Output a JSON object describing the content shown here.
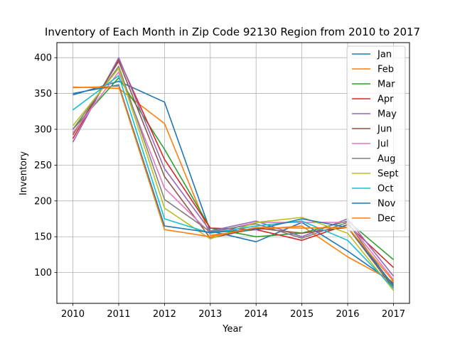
{
  "chart_data": {
    "type": "line",
    "title": "Inventory of Each Month in Zip Code 92130 Region from 2010 to 2017",
    "xlabel": "Year",
    "ylabel": "Inventory",
    "x": [
      2010,
      2011,
      2012,
      2013,
      2014,
      2015,
      2016,
      2017
    ],
    "xlim": [
      2009.65,
      2017.35
    ],
    "ylim": [
      57,
      421
    ],
    "yticks": [
      100,
      150,
      200,
      250,
      300,
      350,
      400
    ],
    "grid": true,
    "legend_position": "top-right",
    "series": [
      {
        "name": "Jan",
        "color": "#1f77b4",
        "values": [
          348,
          367,
          338,
          158,
          143,
          170,
          130,
          85
        ]
      },
      {
        "name": "Feb",
        "color": "#ff7f0e",
        "values": [
          359,
          357,
          308,
          152,
          160,
          165,
          122,
          87
        ]
      },
      {
        "name": "Mar",
        "color": "#2ca02c",
        "values": [
          300,
          372,
          272,
          162,
          150,
          155,
          172,
          118
        ]
      },
      {
        "name": "Apr",
        "color": "#d62728",
        "values": [
          287,
          398,
          258,
          162,
          160,
          145,
          167,
          107
        ]
      },
      {
        "name": "May",
        "color": "#9467bd",
        "values": [
          282,
          400,
          245,
          158,
          172,
          150,
          175,
          95
        ]
      },
      {
        "name": "Jun",
        "color": "#8c564b",
        "values": [
          292,
          395,
          234,
          148,
          162,
          155,
          163,
          78
        ]
      },
      {
        "name": "Jul",
        "color": "#e377c2",
        "values": [
          295,
          380,
          218,
          155,
          170,
          170,
          170,
          90
        ]
      },
      {
        "name": "Aug",
        "color": "#7f7f7f",
        "values": [
          300,
          388,
          202,
          157,
          168,
          148,
          170,
          80
        ]
      },
      {
        "name": "Sept",
        "color": "#bcbd22",
        "values": [
          305,
          385,
          190,
          147,
          170,
          177,
          155,
          75
        ]
      },
      {
        "name": "Oct",
        "color": "#17becf",
        "values": [
          327,
          375,
          175,
          155,
          165,
          172,
          145,
          78
        ]
      },
      {
        "name": "Nov",
        "color": "#1f77b4",
        "values": [
          350,
          362,
          165,
          156,
          160,
          175,
          163,
          82
        ]
      },
      {
        "name": "Dec",
        "color": "#ff7f0e",
        "values": [
          358,
          360,
          160,
          150,
          163,
          162,
          163,
          88
        ]
      }
    ]
  }
}
